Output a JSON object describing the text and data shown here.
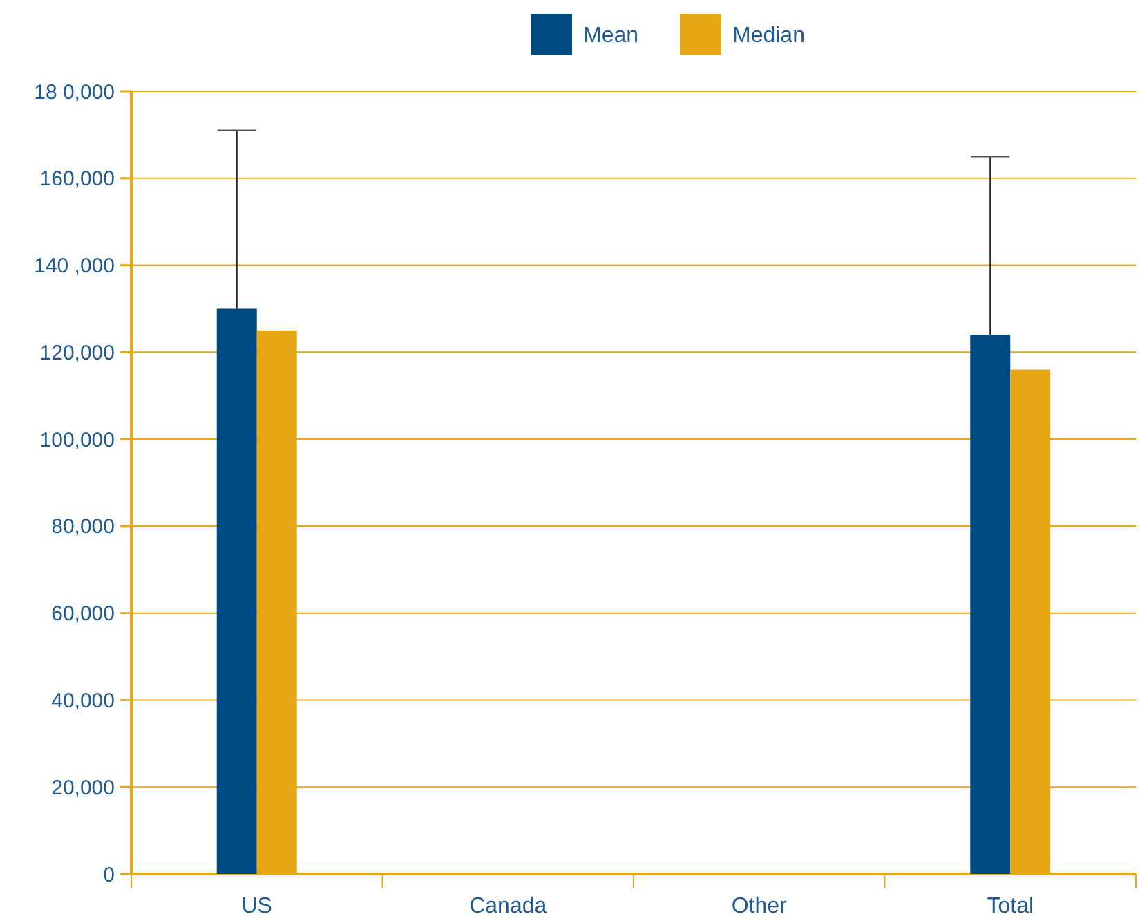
{
  "chart_data": {
    "type": "bar",
    "categories": [
      "US",
      "Canada",
      "Other",
      "Total"
    ],
    "series": [
      {
        "name": "Mean",
        "color": "#004a82",
        "values": [
          130000,
          null,
          null,
          124000
        ],
        "errors": [
          [
            130000,
            171000
          ],
          null,
          null,
          [
            124000,
            165000
          ]
        ]
      },
      {
        "name": "Median",
        "color": "#e6a817",
        "values": [
          125000,
          null,
          null,
          116000
        ]
      }
    ],
    "ylim": [
      0,
      180000
    ],
    "yticks": [
      0,
      {
        "value": 20000,
        "label": "20,000"
      },
      {
        "value": 40000,
        "label": "40,000"
      },
      {
        "value": 60000,
        "label": "60,000"
      },
      {
        "value": 80000,
        "label": "80,000"
      },
      {
        "value": 100000,
        "label": "100,000"
      },
      {
        "value": 120000,
        "label": "120,000"
      },
      {
        "value": 140000,
        "label": "140 ,000"
      },
      {
        "value": 160000,
        "label": "160,000"
      },
      {
        "value": 180000,
        "label": "18 0,000"
      }
    ],
    "grid": "y",
    "legend": "top"
  }
}
